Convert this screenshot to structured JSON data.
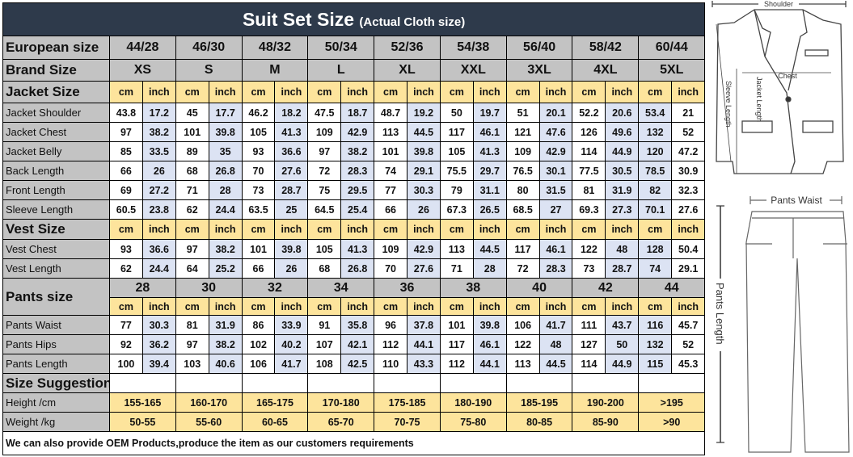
{
  "title": {
    "main": "Suit Set Size",
    "sub": "(Actual Cloth size)"
  },
  "european": {
    "label": "European size",
    "values": [
      "44/28",
      "46/30",
      "48/32",
      "50/34",
      "52/36",
      "54/38",
      "56/40",
      "58/42",
      "60/44"
    ]
  },
  "brand": {
    "label": "Brand Size",
    "values": [
      "XS",
      "S",
      "M",
      "L",
      "XL",
      "XXL",
      "3XL",
      "4XL",
      "5XL"
    ]
  },
  "units": {
    "cm": "cm",
    "inch": "inch"
  },
  "jacket": {
    "label": "Jacket Size",
    "rows": [
      {
        "label": "Jacket Shoulder",
        "values": [
          [
            "43.8",
            "17.2"
          ],
          [
            "45",
            "17.7"
          ],
          [
            "46.2",
            "18.2"
          ],
          [
            "47.5",
            "18.7"
          ],
          [
            "48.7",
            "19.2"
          ],
          [
            "50",
            "19.7"
          ],
          [
            "51",
            "20.1"
          ],
          [
            "52.2",
            "20.6"
          ],
          [
            "53.4",
            "21"
          ]
        ]
      },
      {
        "label": "Jacket Chest",
        "values": [
          [
            "97",
            "38.2"
          ],
          [
            "101",
            "39.8"
          ],
          [
            "105",
            "41.3"
          ],
          [
            "109",
            "42.9"
          ],
          [
            "113",
            "44.5"
          ],
          [
            "117",
            "46.1"
          ],
          [
            "121",
            "47.6"
          ],
          [
            "126",
            "49.6"
          ],
          [
            "132",
            "52"
          ]
        ]
      },
      {
        "label": "Jacket Belly",
        "values": [
          [
            "85",
            "33.5"
          ],
          [
            "89",
            "35"
          ],
          [
            "93",
            "36.6"
          ],
          [
            "97",
            "38.2"
          ],
          [
            "101",
            "39.8"
          ],
          [
            "105",
            "41.3"
          ],
          [
            "109",
            "42.9"
          ],
          [
            "114",
            "44.9"
          ],
          [
            "120",
            "47.2"
          ]
        ]
      },
      {
        "label": "Back Length",
        "values": [
          [
            "66",
            "26"
          ],
          [
            "68",
            "26.8"
          ],
          [
            "70",
            "27.6"
          ],
          [
            "72",
            "28.3"
          ],
          [
            "74",
            "29.1"
          ],
          [
            "75.5",
            "29.7"
          ],
          [
            "76.5",
            "30.1"
          ],
          [
            "77.5",
            "30.5"
          ],
          [
            "78.5",
            "30.9"
          ]
        ]
      },
      {
        "label": "Front Length",
        "values": [
          [
            "69",
            "27.2"
          ],
          [
            "71",
            "28"
          ],
          [
            "73",
            "28.7"
          ],
          [
            "75",
            "29.5"
          ],
          [
            "77",
            "30.3"
          ],
          [
            "79",
            "31.1"
          ],
          [
            "80",
            "31.5"
          ],
          [
            "81",
            "31.9"
          ],
          [
            "82",
            "32.3"
          ]
        ]
      },
      {
        "label": "Sleeve Length",
        "values": [
          [
            "60.5",
            "23.8"
          ],
          [
            "62",
            "24.4"
          ],
          [
            "63.5",
            "25"
          ],
          [
            "64.5",
            "25.4"
          ],
          [
            "66",
            "26"
          ],
          [
            "67.3",
            "26.5"
          ],
          [
            "68.5",
            "27"
          ],
          [
            "69.3",
            "27.3"
          ],
          [
            "70.1",
            "27.6"
          ]
        ]
      }
    ]
  },
  "vest": {
    "label": "Vest Size",
    "rows": [
      {
        "label": "Vest Chest",
        "values": [
          [
            "93",
            "36.6"
          ],
          [
            "97",
            "38.2"
          ],
          [
            "101",
            "39.8"
          ],
          [
            "105",
            "41.3"
          ],
          [
            "109",
            "42.9"
          ],
          [
            "113",
            "44.5"
          ],
          [
            "117",
            "46.1"
          ],
          [
            "122",
            "48"
          ],
          [
            "128",
            "50.4"
          ]
        ]
      },
      {
        "label": "Vest Length",
        "values": [
          [
            "62",
            "24.4"
          ],
          [
            "64",
            "25.2"
          ],
          [
            "66",
            "26"
          ],
          [
            "68",
            "26.8"
          ],
          [
            "70",
            "27.6"
          ],
          [
            "71",
            "28"
          ],
          [
            "72",
            "28.3"
          ],
          [
            "73",
            "28.7"
          ],
          [
            "74",
            "29.1"
          ]
        ]
      }
    ]
  },
  "pants": {
    "label": "Pants size",
    "sizes": [
      "28",
      "30",
      "32",
      "34",
      "36",
      "38",
      "40",
      "42",
      "44"
    ],
    "rows": [
      {
        "label": "Pants Waist",
        "values": [
          [
            "77",
            "30.3"
          ],
          [
            "81",
            "31.9"
          ],
          [
            "86",
            "33.9"
          ],
          [
            "91",
            "35.8"
          ],
          [
            "96",
            "37.8"
          ],
          [
            "101",
            "39.8"
          ],
          [
            "106",
            "41.7"
          ],
          [
            "111",
            "43.7"
          ],
          [
            "116",
            "45.7"
          ]
        ]
      },
      {
        "label": "Pants Hips",
        "values": [
          [
            "92",
            "36.2"
          ],
          [
            "97",
            "38.2"
          ],
          [
            "102",
            "40.2"
          ],
          [
            "107",
            "42.1"
          ],
          [
            "112",
            "44.1"
          ],
          [
            "117",
            "46.1"
          ],
          [
            "122",
            "48"
          ],
          [
            "127",
            "50"
          ],
          [
            "132",
            "52"
          ]
        ]
      },
      {
        "label": "Pants Length",
        "values": [
          [
            "100",
            "39.4"
          ],
          [
            "103",
            "40.6"
          ],
          [
            "106",
            "41.7"
          ],
          [
            "108",
            "42.5"
          ],
          [
            "110",
            "43.3"
          ],
          [
            "112",
            "44.1"
          ],
          [
            "113",
            "44.5"
          ],
          [
            "114",
            "44.9"
          ],
          [
            "115",
            "45.3"
          ]
        ]
      }
    ]
  },
  "suggestion": {
    "label": "Size Suggestion",
    "rows": [
      {
        "label": "Height /cm",
        "values": [
          "155-165",
          "160-170",
          "165-175",
          "170-180",
          "175-185",
          "180-190",
          "185-195",
          "190-200",
          ">195"
        ]
      },
      {
        "label": "Weight /kg",
        "values": [
          "50-55",
          "55-60",
          "60-65",
          "65-70",
          "70-75",
          "75-80",
          "80-85",
          "85-90",
          ">90"
        ]
      }
    ]
  },
  "footer": "We can also provide OEM Products,produce the item as our customers requirements",
  "figure": {
    "shoulder": "Shoulder",
    "chest": "Chest",
    "sleeve_length": "Sleeve Length",
    "jacket_length": "Jacket Length",
    "pants_waist": "Pants Waist",
    "pants_length": "Pants Length"
  },
  "colors": {
    "title_bg": "#2e3a4b",
    "label_bg": "#c3c3c3",
    "unit_bg": "#fde49c",
    "shade": "#dce3f3"
  }
}
